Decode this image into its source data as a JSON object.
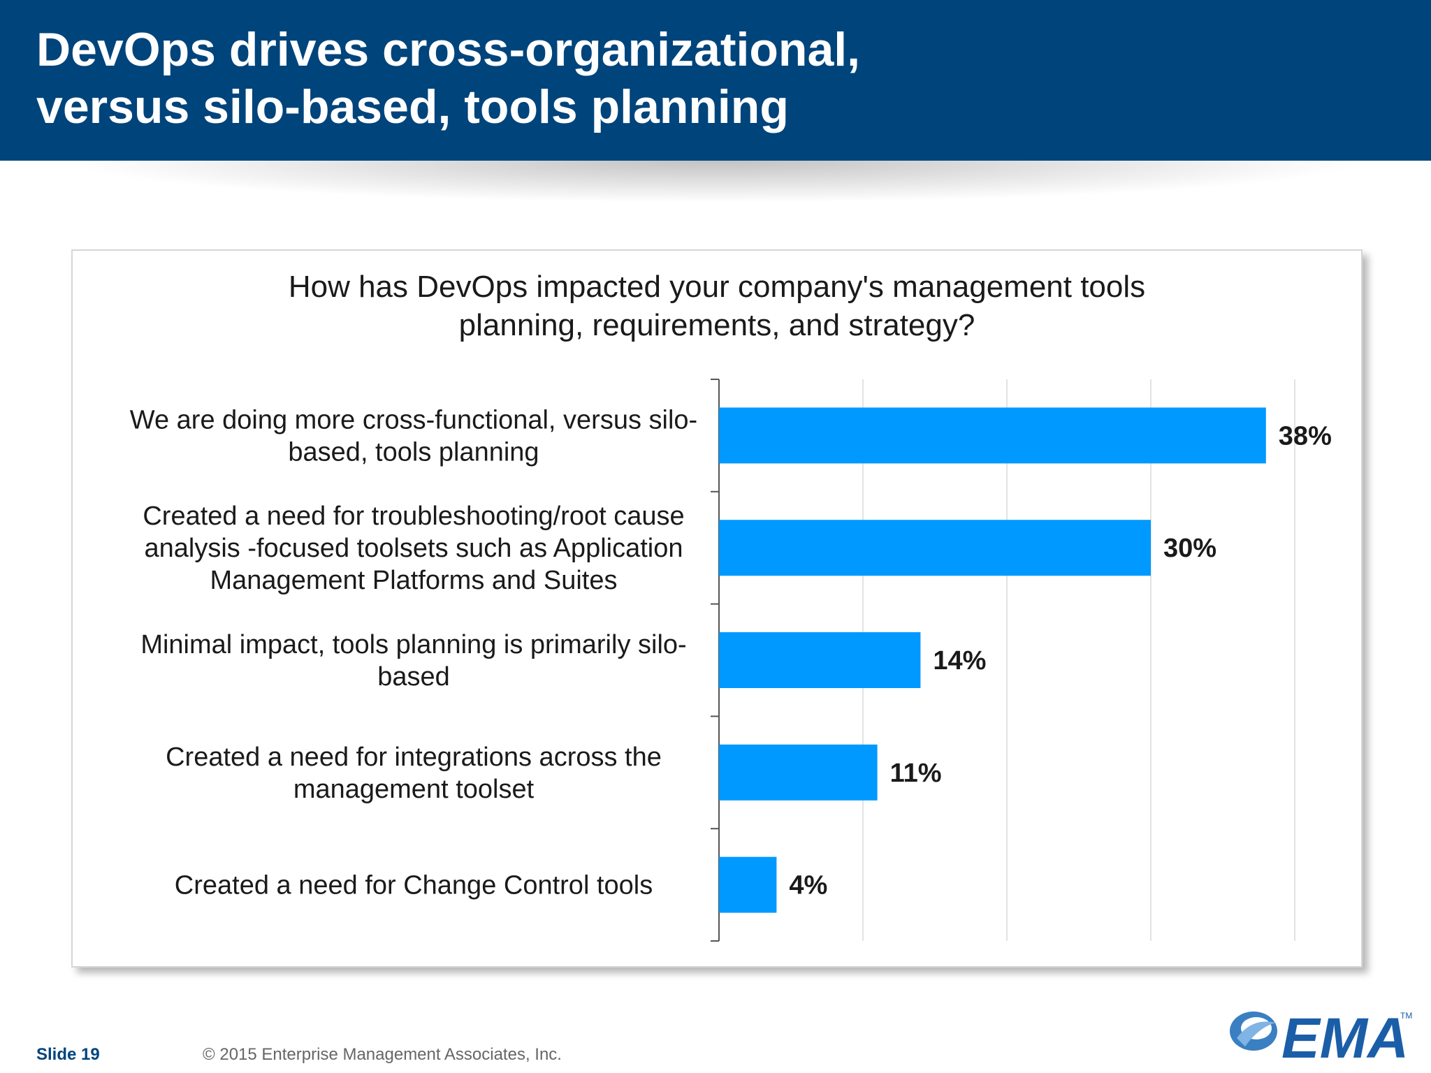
{
  "slide": {
    "title": "DevOps drives cross-organizational,\nversus silo-based, tools planning",
    "number_label": "Slide 19",
    "copyright": "© 2015 Enterprise Management Associates, Inc.",
    "logo_text": "EMA",
    "logo_mark": "TM"
  },
  "colors": {
    "header": "#00447c",
    "bar": "#0099ff",
    "gridline": "#e3e3e3",
    "axis": "#555555"
  },
  "chart_data": {
    "type": "bar",
    "orientation": "horizontal",
    "title": "How has DevOps impacted your company's management tools\nplanning, requirements, and strategy?",
    "categories": [
      "We are doing more cross-functional, versus silo-\nbased, tools planning",
      "Created a need for troubleshooting/root cause\nanalysis -focused toolsets such as Application\nManagement Platforms and Suites",
      "Minimal impact, tools planning is primarily silo-\nbased",
      "Created a need for integrations across the\nmanagement toolset",
      "Created a need for Change Control tools"
    ],
    "values": [
      38,
      30,
      14,
      11,
      4
    ],
    "value_labels": [
      "38%",
      "30%",
      "14%",
      "11%",
      "4%"
    ],
    "xlim": [
      0,
      40
    ],
    "grid": true,
    "legend": "none"
  }
}
